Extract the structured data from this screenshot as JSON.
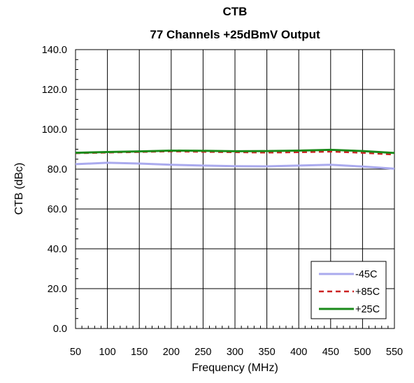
{
  "chart_data": {
    "type": "line",
    "title": "CTB",
    "subtitle": "77 Channels +25dBmV Output",
    "xlabel": "Frequency (MHz)",
    "ylabel": "CTB (dBc)",
    "xlim": [
      50,
      550
    ],
    "ylim": [
      0,
      140
    ],
    "xticks": [
      "50",
      "100",
      "150",
      "200",
      "250",
      "300",
      "350",
      "400",
      "450",
      "500",
      "550"
    ],
    "yticks": [
      "0.0",
      "20.0",
      "40.0",
      "60.0",
      "80.0",
      "100.0",
      "120.0",
      "140.0"
    ],
    "grid": true,
    "legend_position": "bottom-right",
    "x": [
      50,
      100,
      150,
      200,
      250,
      300,
      350,
      400,
      450,
      500,
      550
    ],
    "series": [
      {
        "name": "-45C",
        "color": "#aaaaee",
        "style": "solid",
        "values": [
          82.5,
          83.2,
          82.8,
          82.2,
          81.8,
          81.5,
          81.4,
          81.8,
          82.2,
          81.3,
          80.2
        ]
      },
      {
        "name": "+85C",
        "color": "#cc2222",
        "style": "dashed",
        "values": [
          88.0,
          88.3,
          88.6,
          88.9,
          88.7,
          88.5,
          88.3,
          88.5,
          88.8,
          88.2,
          87.3
        ]
      },
      {
        "name": "+25C",
        "color": "#1a8a1a",
        "style": "solid",
        "values": [
          88.2,
          88.6,
          88.9,
          89.3,
          89.2,
          89.0,
          89.1,
          89.3,
          89.7,
          89.1,
          88.1
        ]
      }
    ]
  }
}
